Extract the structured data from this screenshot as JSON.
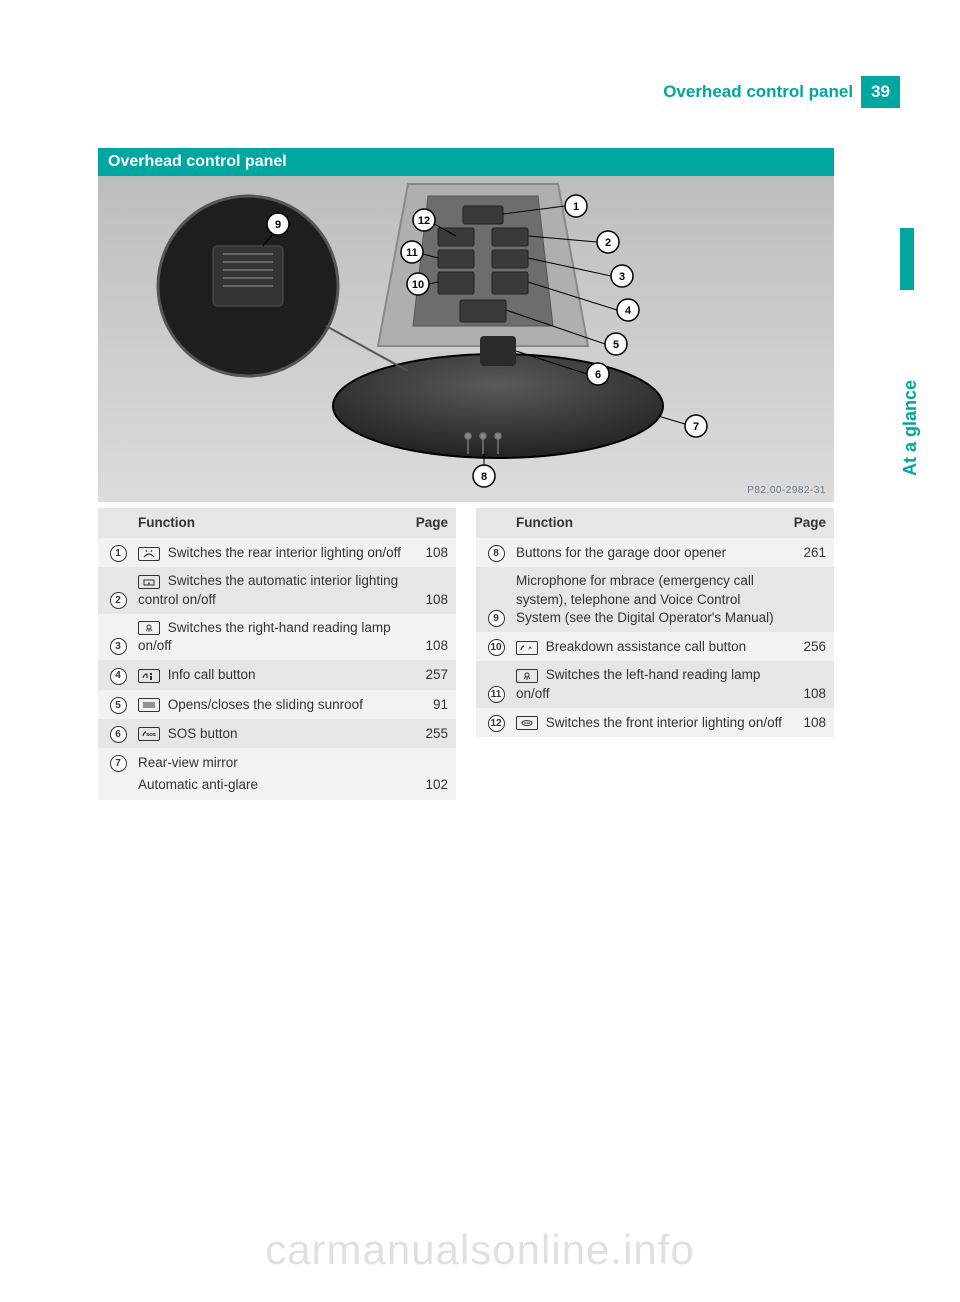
{
  "header": {
    "title": "Overhead control panel",
    "page_number": "39"
  },
  "sidebar": {
    "label": "At a glance"
  },
  "section": {
    "title": "Overhead control panel"
  },
  "figure": {
    "code": "P82.00-2982-31",
    "callouts": [
      "1",
      "2",
      "3",
      "4",
      "5",
      "6",
      "7",
      "8",
      "9",
      "10",
      "11",
      "12"
    ]
  },
  "table_headers": {
    "function": "Function",
    "page": "Page"
  },
  "left_rows": [
    {
      "n": "1",
      "icon": "rear-light",
      "text": "Switches the rear interior lighting on/off",
      "page": "108"
    },
    {
      "n": "2",
      "icon": "auto-light",
      "text": "Switches the automatic interior lighting control on/off",
      "page": "108"
    },
    {
      "n": "3",
      "icon": "reading-lamp",
      "text": "Switches the right-hand reading lamp on/off",
      "page": "108"
    },
    {
      "n": "4",
      "icon": "info",
      "text": "Info call button",
      "page": "257"
    },
    {
      "n": "5",
      "icon": "sunroof",
      "text": "Opens/closes the sliding sunroof",
      "page": "91"
    },
    {
      "n": "6",
      "icon": "sos",
      "text": "SOS button",
      "page": "255"
    },
    {
      "n": "7",
      "icon": "",
      "text": "Rear-view mirror",
      "sub": "Automatic anti-glare",
      "page": "",
      "subpage": "102"
    }
  ],
  "right_rows": [
    {
      "n": "8",
      "icon": "",
      "text": "Buttons for the garage door opener",
      "page": "261"
    },
    {
      "n": "9",
      "icon": "",
      "text": "Microphone for mbrace (emergency call system), telephone and Voice Control System (see the Digital Operator's Manual)",
      "page": ""
    },
    {
      "n": "10",
      "icon": "breakdown",
      "text": "Breakdown assistance call button",
      "page": "256"
    },
    {
      "n": "11",
      "icon": "reading-lamp",
      "text": "Switches the left-hand reading lamp on/off",
      "page": "108"
    },
    {
      "n": "12",
      "icon": "front-light",
      "text": "Switches the front interior lighting on/off",
      "page": "108"
    }
  ],
  "watermark": "carmanualsonline.info",
  "colors": {
    "accent": "#00a6a0",
    "row_light": "#f2f2f2",
    "row_dark": "#e6e6e6"
  }
}
